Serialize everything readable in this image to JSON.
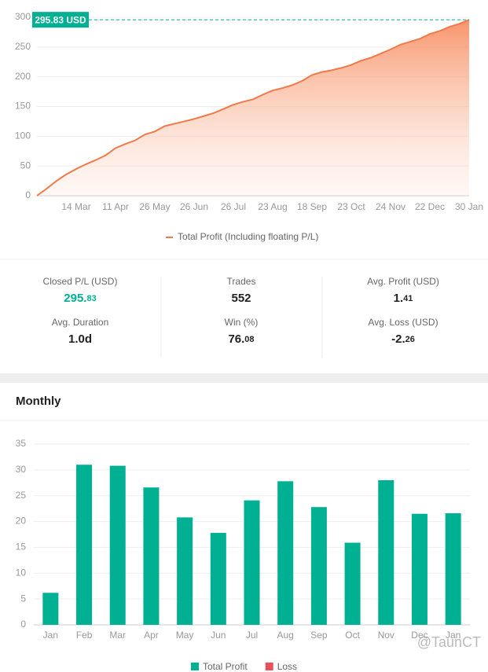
{
  "chart_data": [
    {
      "type": "line",
      "annotation": "295.83 USD",
      "categories": [
        null,
        null,
        null,
        null,
        "14 Mar",
        null,
        null,
        null,
        "11 Apr",
        null,
        null,
        null,
        "26 May",
        null,
        null,
        null,
        "26 Jun",
        null,
        null,
        null,
        "26 Jul",
        null,
        null,
        null,
        "23 Aug",
        null,
        null,
        null,
        "18 Sep",
        null,
        null,
        null,
        "23 Oct",
        null,
        null,
        null,
        "24 Nov",
        null,
        null,
        null,
        "22 Dec",
        null,
        null,
        null,
        "30 Jan"
      ],
      "series": [
        {
          "name": "Total Profit (Including floating P/L)",
          "color": "#f07a4a",
          "values": [
            0,
            12,
            25,
            36,
            45,
            53,
            60,
            68,
            80,
            87,
            93,
            103,
            108,
            117,
            121,
            125,
            129,
            134,
            139,
            146,
            153,
            158,
            162,
            170,
            177,
            181,
            186,
            193,
            203,
            208,
            211,
            215,
            220,
            227,
            232,
            239,
            246,
            254,
            259,
            264,
            272,
            277,
            284,
            289,
            295.83
          ]
        }
      ],
      "ylim": [
        0,
        300
      ],
      "yticks": [
        0,
        50,
        100,
        150,
        200,
        250,
        300
      ],
      "grid": true,
      "legend": "bottom"
    },
    {
      "type": "bar",
      "title": "Monthly",
      "categories": [
        "Jan",
        "Feb",
        "Mar",
        "Apr",
        "May",
        "Jun",
        "Jul",
        "Aug",
        "Sep",
        "Oct",
        "Nov",
        "Dec",
        "Jan"
      ],
      "series": [
        {
          "name": "Total Profit",
          "color": "#00b092",
          "values": [
            6.2,
            31,
            30.8,
            26.6,
            20.8,
            17.8,
            24.1,
            27.8,
            22.8,
            15.9,
            28,
            21.5,
            21.6
          ]
        },
        {
          "name": "Loss",
          "color": "#e8505b",
          "values": [
            null,
            null,
            null,
            null,
            null,
            null,
            null,
            null,
            null,
            null,
            null,
            null,
            null
          ]
        }
      ],
      "ylim": [
        0,
        35
      ],
      "yticks": [
        0,
        5,
        10,
        15,
        20,
        25,
        30,
        35
      ],
      "grid": true,
      "legend": "bottom"
    }
  ],
  "stats": [
    {
      "label": "Closed P/L (USD)",
      "value": "295.83"
    },
    {
      "label": "Trades",
      "value": "552"
    },
    {
      "label": "Avg. Profit (USD)",
      "value": "1.41"
    },
    {
      "label": "Avg. Duration",
      "value": "1.0d"
    },
    {
      "label": "Win (%)",
      "value": "76.08"
    },
    {
      "label": "Avg. Loss (USD)",
      "value": "-2.26"
    }
  ],
  "watermark": "@TaunCT"
}
